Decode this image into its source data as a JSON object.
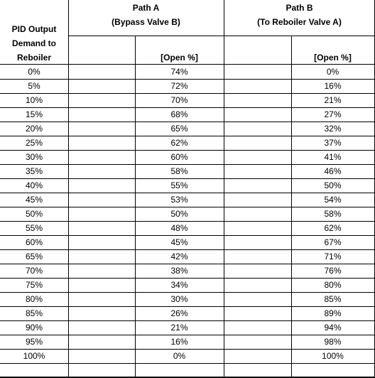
{
  "header": {
    "path_a_title": "Path A",
    "path_a_sub": "(Bypass Valve B)",
    "path_b_title": "Path B",
    "path_b_sub": "(To Reboiler Valve A)",
    "demand_line1": "PID Output",
    "demand_line2": "Demand to",
    "demand_line3": "Reboiler",
    "path_a_unit": "[Open %]",
    "path_b_unit": "[Open %]"
  },
  "rows": [
    {
      "demand": "0%",
      "path_a": "74%",
      "path_b": "0%"
    },
    {
      "demand": "5%",
      "path_a": "72%",
      "path_b": "16%"
    },
    {
      "demand": "10%",
      "path_a": "70%",
      "path_b": "21%"
    },
    {
      "demand": "15%",
      "path_a": "68%",
      "path_b": "27%"
    },
    {
      "demand": "20%",
      "path_a": "65%",
      "path_b": "32%"
    },
    {
      "demand": "25%",
      "path_a": "62%",
      "path_b": "37%"
    },
    {
      "demand": "30%",
      "path_a": "60%",
      "path_b": "41%"
    },
    {
      "demand": "35%",
      "path_a": "58%",
      "path_b": "46%"
    },
    {
      "demand": "40%",
      "path_a": "55%",
      "path_b": "50%"
    },
    {
      "demand": "45%",
      "path_a": "53%",
      "path_b": "54%"
    },
    {
      "demand": "50%",
      "path_a": "50%",
      "path_b": "58%"
    },
    {
      "demand": "55%",
      "path_a": "48%",
      "path_b": "62%"
    },
    {
      "demand": "60%",
      "path_a": "45%",
      "path_b": "67%"
    },
    {
      "demand": "65%",
      "path_a": "42%",
      "path_b": "71%"
    },
    {
      "demand": "70%",
      "path_a": "38%",
      "path_b": "76%"
    },
    {
      "demand": "75%",
      "path_a": "34%",
      "path_b": "80%"
    },
    {
      "demand": "80%",
      "path_a": "30%",
      "path_b": "85%"
    },
    {
      "demand": "85%",
      "path_a": "26%",
      "path_b": "89%"
    },
    {
      "demand": "90%",
      "path_a": "21%",
      "path_b": "94%"
    },
    {
      "demand": "95%",
      "path_a": "16%",
      "path_b": "98%"
    },
    {
      "demand": "100%",
      "path_a": "0%",
      "path_b": "100%"
    }
  ]
}
